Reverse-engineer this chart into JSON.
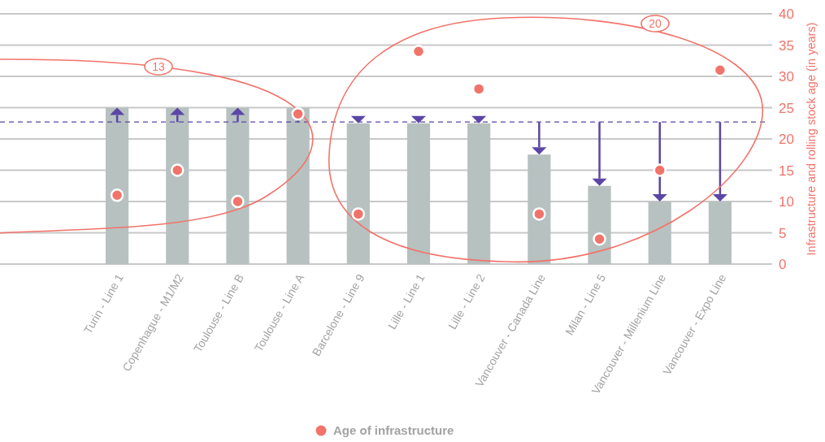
{
  "chart_data": {
    "type": "bar",
    "ylabel": "Infrastructure and rolling stock age (in years)",
    "categories": [
      "Turin - Line 1",
      "Copenhague - M1/M2",
      "Toulouse - Line B",
      "Toulouse - Line A",
      "Barcelone - Line 9",
      "Lille - Line 1",
      "Lille - Line 2",
      "Vancouver - Canada Line",
      "Milan - Line 5",
      "Vancouver - Millenium Line",
      "Vancouver - Expo Line"
    ],
    "series": [
      {
        "color": "#b7c1c0",
        "values": [
          25,
          25,
          25,
          25,
          22.5,
          22.5,
          22.5,
          17.5,
          12.5,
          10,
          10
        ]
      },
      {
        "type": "scatter",
        "name": "Age of infrastructure",
        "color": "#f2736a",
        "x": [
          "Turin - Line 1",
          "Copenhague - M1/M2",
          "Toulouse - Line B",
          "Toulouse - Line A",
          "Barcelone - Line 9",
          "Lille - Line 1",
          "Lille - Line 2",
          "Vancouver - Canada Line",
          "Milan - Line 5",
          "Vancouver - Millenium Line",
          "Vancouver - Expo Line"
        ],
        "values": [
          11,
          15,
          10,
          24,
          8,
          34,
          28,
          8,
          4,
          15,
          31
        ]
      }
    ],
    "ref_lines": [
      {
        "axis": "y",
        "value": 22.7,
        "color": "#5b46a6",
        "line_style": "dashed"
      }
    ],
    "annotations": [
      "13",
      "20"
    ],
    "ylim": [
      0,
      40
    ],
    "yticks": [
      0,
      5,
      10,
      15,
      20,
      25,
      30,
      35,
      40
    ],
    "grid": "y",
    "legend": "bottom",
    "marker": "circle"
  }
}
